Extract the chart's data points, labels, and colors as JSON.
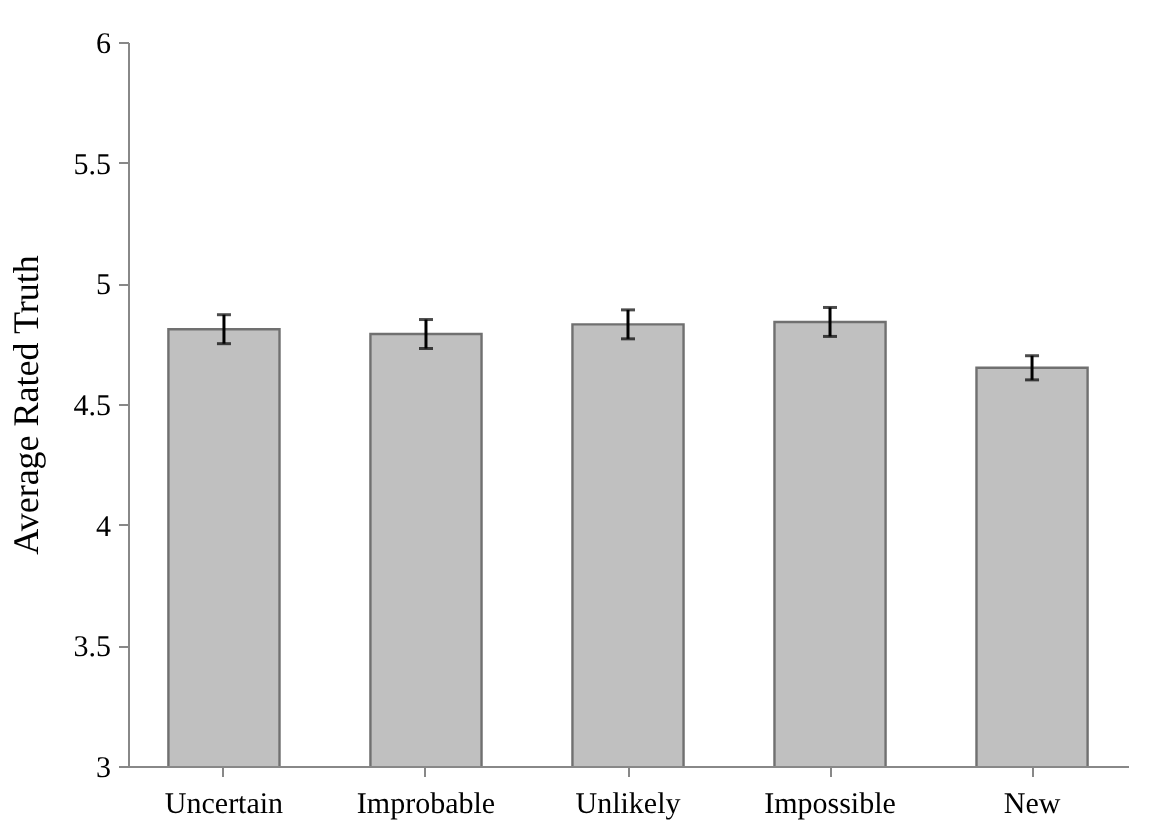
{
  "chart_data": {
    "type": "bar",
    "ylabel": "Average Rated Truth",
    "categories": [
      "Uncertain",
      "Improbable",
      "Unlikely",
      "Impossible",
      "New"
    ],
    "values": [
      4.81,
      4.79,
      4.83,
      4.84,
      4.65
    ],
    "errors": [
      0.06,
      0.06,
      0.06,
      0.06,
      0.05
    ],
    "color": "#c0c0c0",
    "ylim": [
      3,
      6
    ],
    "yticks": [
      3,
      3.5,
      4,
      4.5,
      5,
      5.5,
      6
    ],
    "grid": false
  }
}
